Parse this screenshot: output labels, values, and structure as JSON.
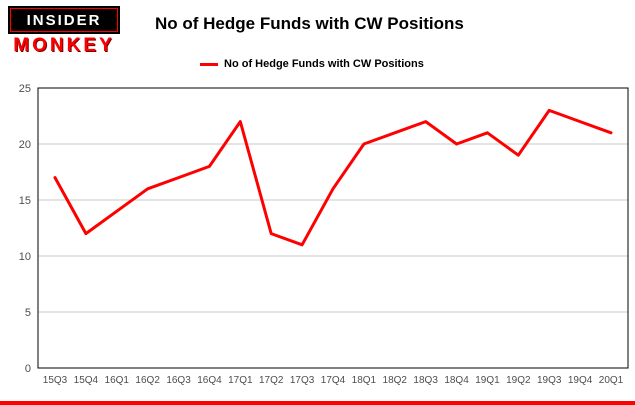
{
  "logo": {
    "top": "INSIDER",
    "bottom": "MONKEY"
  },
  "header": {
    "title": "No of Hedge Funds with CW Positions"
  },
  "legend": {
    "label": "No of Hedge Funds with CW Positions",
    "color": "#fe0000"
  },
  "colors": {
    "line": "#fe0000",
    "grid": "#c9c9c9",
    "axis": "#000000",
    "tick_text": "#4d4d4d",
    "bottom_bar": "#fe0000"
  },
  "chart_data": {
    "type": "line",
    "title": "No of Hedge Funds with CW Positions",
    "xlabel": "",
    "ylabel": "",
    "ylim": [
      0,
      25
    ],
    "yticks": [
      0,
      5,
      10,
      15,
      20,
      25
    ],
    "grid": true,
    "legend_position": "top",
    "categories": [
      "15Q3",
      "15Q4",
      "16Q1",
      "16Q2",
      "16Q3",
      "16Q4",
      "17Q1",
      "17Q2",
      "17Q3",
      "17Q4",
      "18Q1",
      "18Q2",
      "18Q3",
      "18Q4",
      "19Q1",
      "19Q2",
      "19Q3",
      "19Q4",
      "20Q1"
    ],
    "series": [
      {
        "name": "No of Hedge Funds with CW Positions",
        "color": "#fe0000",
        "values": [
          17,
          12,
          14,
          16,
          17,
          18,
          22,
          12,
          11,
          16,
          20,
          21,
          22,
          20,
          21,
          19,
          23,
          22,
          21
        ]
      }
    ]
  }
}
